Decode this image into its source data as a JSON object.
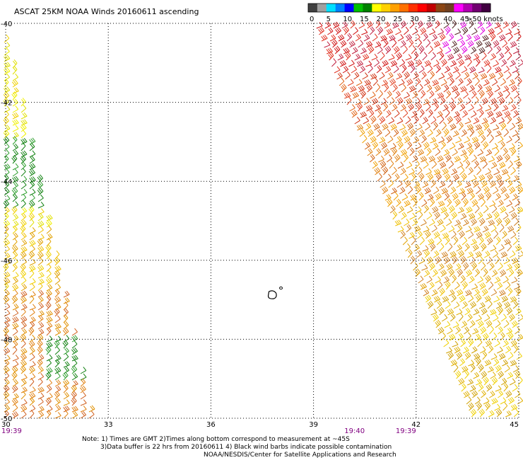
{
  "title": "ASCAT 25KM NOAA Winds 20160611 ascending",
  "colorbar": {
    "unit_label": ">50 knots",
    "tick_labels": [
      "0",
      "5",
      "10",
      "15",
      "20",
      "25",
      "30",
      "35",
      "40",
      "45"
    ],
    "colors": [
      "#404040",
      "#a0a0a0",
      "#00e0ff",
      "#0080ff",
      "#0000ff",
      "#00c000",
      "#008000",
      "#ffff00",
      "#ffd000",
      "#ffa000",
      "#ff7000",
      "#ff3000",
      "#ff0000",
      "#c00000",
      "#8b4513",
      "#704020",
      "#ff00ff",
      "#b000b0",
      "#700070",
      "#400040"
    ]
  },
  "axes": {
    "lon_labels": [
      "30",
      "33",
      "36",
      "39",
      "42",
      "45"
    ],
    "lat_labels": [
      "-40",
      "-42",
      "-44",
      "-46",
      "-48",
      "-50"
    ],
    "lon_range": [
      30,
      45
    ],
    "lat_range": [
      -50,
      -40
    ],
    "grid": "dotted"
  },
  "pass_times": [
    {
      "label": "19:39",
      "lon": 30
    },
    {
      "label": "19:40",
      "lon": 40.2
    },
    {
      "label": "19:39",
      "lon": 41.7
    }
  ],
  "island": {
    "name_visible": false,
    "lon": 37.8,
    "lat": -46.9
  },
  "notes": {
    "line1": "Note: 1) Times are GMT 2)Times along bottom correspond to measurement at ~45S",
    "line2": "3)Data buffer is 22 hrs from 20160611 4) Black wind barbs indicate possible contamination",
    "line3": "NOAA/NESDIS/Center for Satellite Applications and Research"
  }
}
